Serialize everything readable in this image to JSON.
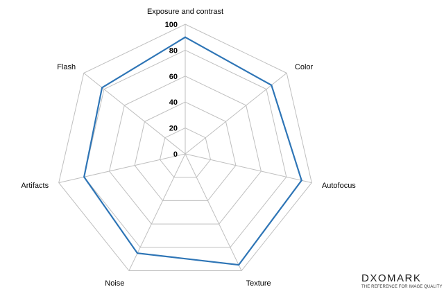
{
  "chart_data": {
    "type": "radar",
    "title": "",
    "axes": [
      "Exposure and contrast",
      "Color",
      "Autofocus",
      "Texture",
      "Noise",
      "Artifacts",
      "Flash"
    ],
    "series": [
      {
        "values": [
          90,
          85,
          92,
          95,
          85,
          80,
          82
        ]
      }
    ],
    "rlim": [
      0,
      100
    ],
    "ticks": [
      0,
      20,
      40,
      60,
      80,
      100
    ],
    "tick_labels": [
      "0",
      "20",
      "40",
      "60",
      "80",
      "100"
    ],
    "grid": true,
    "legend": "none",
    "series_color": "#2e75b6",
    "grid_color": "#bfbfbf"
  },
  "branding": {
    "logo_text": "DXOMARK",
    "tagline": "THE REFERENCE FOR IMAGE QUALITY"
  }
}
